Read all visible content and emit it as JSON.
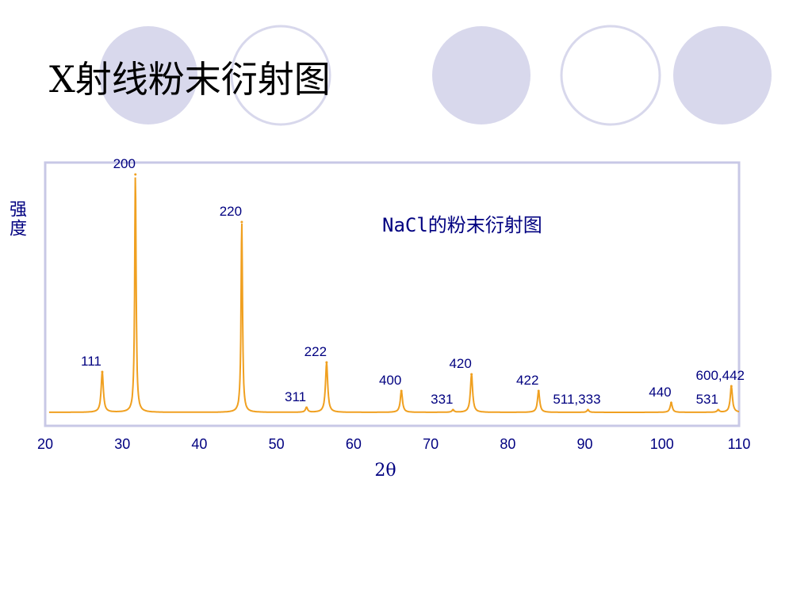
{
  "slide_title": "X射线粉末衍射图",
  "chart_data": {
    "type": "line",
    "title": "NaCl的粉末衍射图",
    "xlabel": "2θ",
    "ylabel": "强度",
    "xlim": [
      20,
      110
    ],
    "ylim": [
      0,
      100
    ],
    "x_ticks": [
      "20",
      "30",
      "40",
      "50",
      "60",
      "70",
      "80",
      "90",
      "100",
      "110"
    ],
    "grid": false,
    "line_color": "#F0A020",
    "series": [
      {
        "peaks": [
          {
            "label": "111",
            "x": 27.4,
            "y": 17
          },
          {
            "label": "200",
            "x": 31.7,
            "y": 100
          },
          {
            "label": "220",
            "x": 45.5,
            "y": 80
          },
          {
            "label": "311",
            "x": 53.9,
            "y": 2
          },
          {
            "label": "222",
            "x": 56.5,
            "y": 21
          },
          {
            "label": "400",
            "x": 66.2,
            "y": 9
          },
          {
            "label": "331",
            "x": 72.9,
            "y": 1
          },
          {
            "label": "420",
            "x": 75.3,
            "y": 16
          },
          {
            "label": "422",
            "x": 84.0,
            "y": 9
          },
          {
            "label": "511,333",
            "x": 90.4,
            "y": 1
          },
          {
            "label": "440",
            "x": 101.2,
            "y": 4
          },
          {
            "label": "531",
            "x": 107.3,
            "y": 1
          },
          {
            "label": "600,442",
            "x": 109.0,
            "y": 11
          }
        ]
      }
    ]
  }
}
